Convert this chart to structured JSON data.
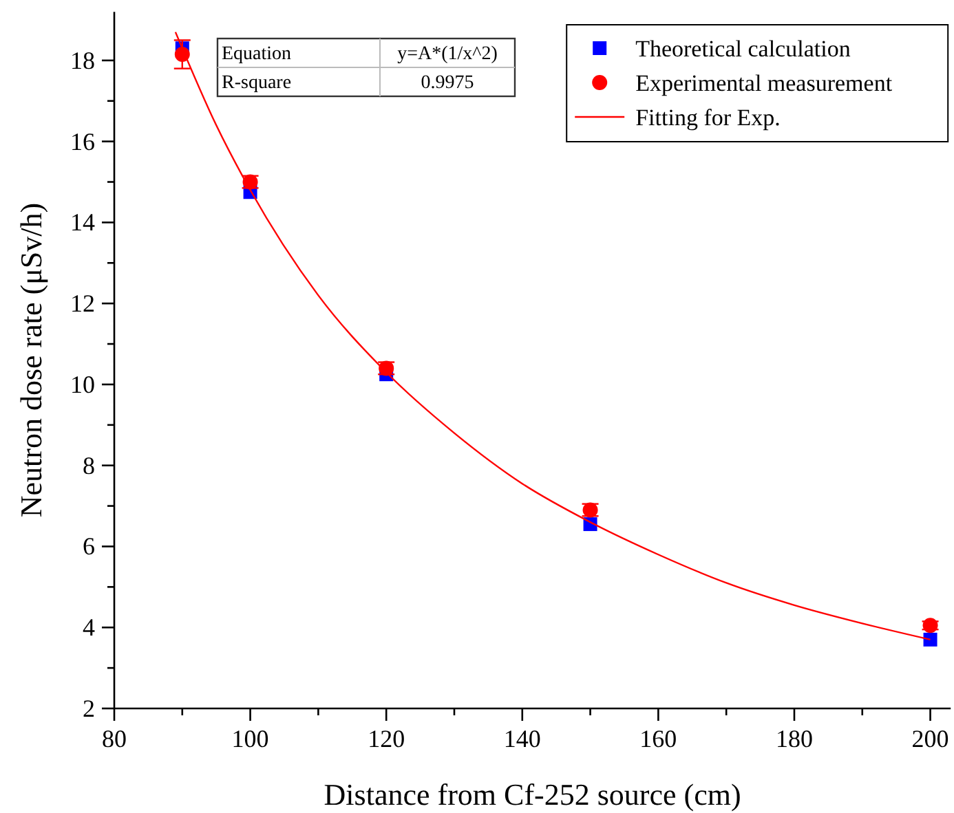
{
  "chart_data": {
    "type": "scatter",
    "xlabel": "Distance from Cf-252 source (cm)",
    "ylabel": "Neutron dose rate (μSv/h)",
    "xlim": [
      80,
      203
    ],
    "xticks": [
      80,
      100,
      120,
      140,
      160,
      180,
      200
    ],
    "ylim": [
      2,
      19.2
    ],
    "yticks": [
      2,
      4,
      6,
      8,
      10,
      12,
      14,
      16,
      18
    ],
    "grid": false,
    "legend": "top right",
    "annotations": [
      "Equation",
      "y=A*(1/x^2)",
      "R-square",
      "0.9975"
    ],
    "series": [
      {
        "name": "Theoretical calculation",
        "marker": "square",
        "color": "#0000ff",
        "x": [
          90,
          100,
          120,
          150,
          200
        ],
        "values": [
          18.3,
          14.75,
          10.25,
          6.55,
          3.7
        ]
      },
      {
        "name": "Experimental measurement",
        "marker": "circle",
        "color": "#ff0000",
        "x": [
          90,
          100,
          120,
          150,
          200
        ],
        "values": [
          18.15,
          15.0,
          10.4,
          6.9,
          4.05
        ],
        "errors": [
          0.35,
          0.15,
          0.15,
          0.15,
          0.1
        ]
      },
      {
        "name": "Fitting for Exp.",
        "type": "line",
        "marker": "none",
        "line_style": "solid",
        "color": "#ff0000",
        "x": [
          89,
          95,
          100,
          110,
          120,
          130,
          140,
          150,
          160,
          170,
          180,
          190,
          200
        ],
        "values": [
          18.7,
          16.4,
          14.8,
          12.2,
          10.3,
          8.8,
          7.55,
          6.6,
          5.8,
          5.1,
          4.55,
          4.1,
          3.7
        ]
      }
    ]
  }
}
